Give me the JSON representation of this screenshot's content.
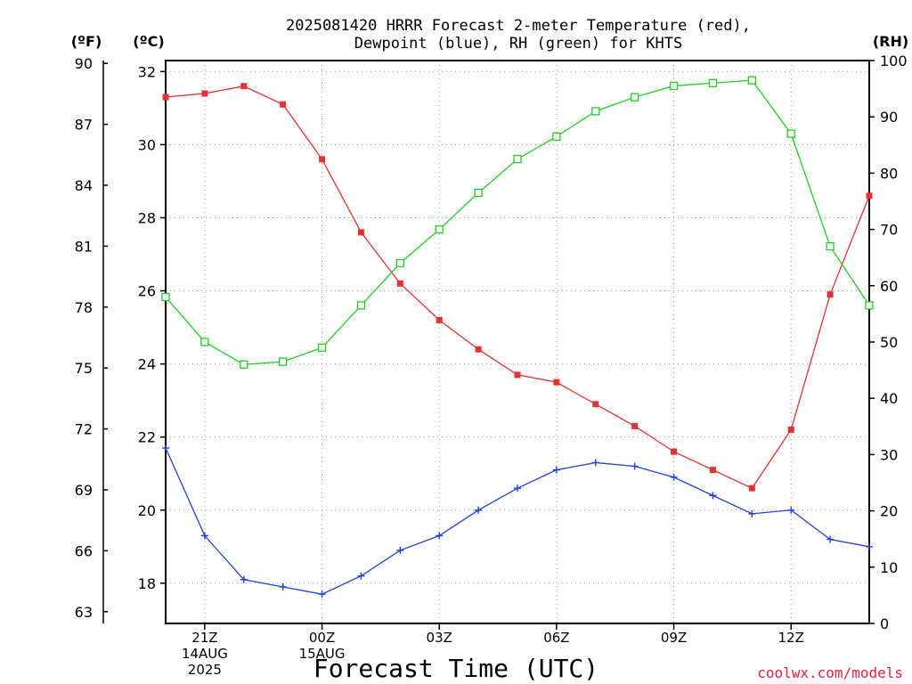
{
  "chart_data": {
    "type": "line",
    "title_lines": [
      "2025081420 HRRR Forecast 2-meter Temperature (red),",
      "Dewpoint (blue), RH (green) for KHTS"
    ],
    "xlabel": "Forecast Time (UTC)",
    "credit": "coolwx.com/models",
    "units": {
      "f": "(ºF)",
      "c": "(ºC)",
      "rh": "(RH)"
    },
    "x_hours": [
      20,
      21,
      22,
      23,
      24,
      25,
      26,
      27,
      28,
      29,
      30,
      31,
      32,
      33,
      34,
      35,
      36,
      37,
      38
    ],
    "xlim": [
      20,
      38
    ],
    "x_ticks": [
      {
        "hour": 21,
        "lines": [
          "21Z",
          "14AUG",
          "2025"
        ]
      },
      {
        "hour": 24,
        "lines": [
          "00Z",
          "15AUG"
        ]
      },
      {
        "hour": 27,
        "lines": [
          "03Z"
        ]
      },
      {
        "hour": 30,
        "lines": [
          "06Z"
        ]
      },
      {
        "hour": 33,
        "lines": [
          "09Z"
        ]
      },
      {
        "hour": 36,
        "lines": [
          "12Z"
        ]
      }
    ],
    "celsius_axis": {
      "min": 16.9,
      "max": 32.3,
      "ticks": [
        18,
        20,
        22,
        24,
        26,
        28,
        30,
        32
      ]
    },
    "fahrenheit_axis": {
      "ticks": [
        63,
        66,
        69,
        72,
        75,
        78,
        81,
        84,
        87,
        90
      ]
    },
    "rh_axis": {
      "min": 0,
      "max": 100,
      "ticks": [
        0,
        10,
        20,
        30,
        40,
        50,
        60,
        70,
        80,
        90,
        100
      ]
    },
    "grid": true,
    "series": [
      {
        "name": "Temperature (red)",
        "axis": "celsius",
        "color": "#e83030",
        "marker": "filled-square",
        "values": [
          31.3,
          31.4,
          31.6,
          31.1,
          29.6,
          27.6,
          26.2,
          25.2,
          24.4,
          23.7,
          23.5,
          22.9,
          22.3,
          21.6,
          21.1,
          20.6,
          22.2,
          25.9,
          28.6
        ]
      },
      {
        "name": "Dewpoint (blue)",
        "axis": "celsius",
        "color": "#2040e8",
        "marker": "plus",
        "values": [
          21.7,
          19.3,
          18.1,
          17.9,
          17.7,
          18.2,
          18.9,
          19.3,
          20.0,
          20.6,
          21.1,
          21.3,
          21.2,
          20.9,
          20.4,
          19.9,
          20.0,
          19.2,
          19.0
        ]
      },
      {
        "name": "RH (green)",
        "axis": "rh",
        "color": "#20d020",
        "marker": "open-square",
        "values": [
          58,
          50,
          46,
          46.5,
          49,
          56.5,
          64,
          70,
          76.5,
          82.5,
          86.5,
          91,
          93.5,
          95.5,
          96,
          96.5,
          87,
          67,
          56.5
        ]
      }
    ]
  }
}
